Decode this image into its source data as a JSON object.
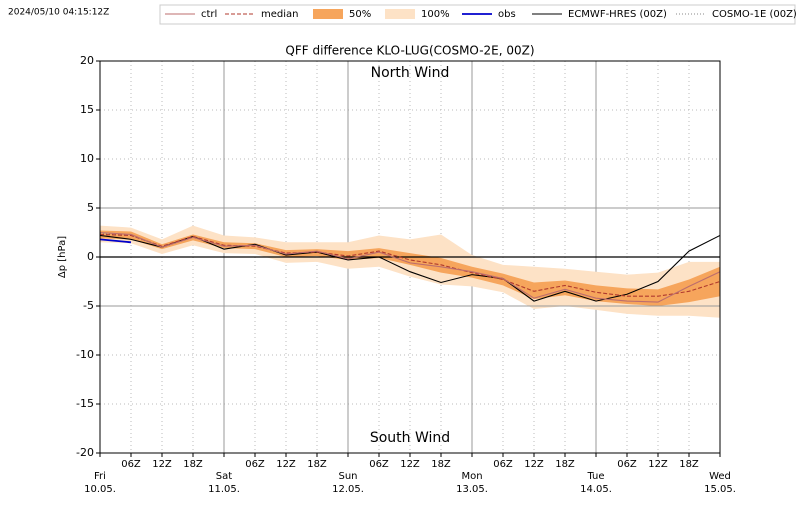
{
  "timestamp": "2024/05/10 04:15:12Z",
  "chart_data": {
    "type": "ensemble",
    "title": "QFF difference KLO-LUG(COSMO-2E, 00Z)",
    "ylabel": "Δp [hPa]",
    "annotations": [
      "North Wind",
      "South Wind"
    ],
    "xlim": [
      "10.05. 00Z",
      "15.05. 00Z"
    ],
    "ylim": [
      -20,
      20
    ],
    "yticks": [
      -20,
      -15,
      -10,
      -5,
      0,
      5,
      10,
      15,
      20
    ],
    "grid": true,
    "hlines": [
      {
        "value": 0,
        "color": "#000000"
      },
      {
        "value": 5,
        "color": "#999999"
      },
      {
        "value": -5,
        "color": "#999999"
      }
    ],
    "xticks": [
      {
        "value": "10.05. 00Z",
        "label": [
          "Fri",
          "10.05."
        ]
      },
      {
        "value": "10.05. 06Z",
        "label": "06Z"
      },
      {
        "value": "10.05. 12Z",
        "label": "12Z"
      },
      {
        "value": "10.05. 18Z",
        "label": "18Z"
      },
      {
        "value": "11.05. 00Z",
        "label": [
          "Sat",
          "11.05."
        ]
      },
      {
        "value": "11.05. 06Z",
        "label": "06Z"
      },
      {
        "value": "11.05. 12Z",
        "label": "12Z"
      },
      {
        "value": "11.05. 18Z",
        "label": "18Z"
      },
      {
        "value": "12.05. 00Z",
        "label": [
          "Sun",
          "12.05."
        ]
      },
      {
        "value": "12.05. 06Z",
        "label": "06Z"
      },
      {
        "value": "12.05. 12Z",
        "label": "12Z"
      },
      {
        "value": "12.05. 18Z",
        "label": "18Z"
      },
      {
        "value": "13.05. 00Z",
        "label": [
          "Mon",
          "13.05."
        ]
      },
      {
        "value": "13.05. 06Z",
        "label": "06Z"
      },
      {
        "value": "13.05. 12Z",
        "label": "12Z"
      },
      {
        "value": "13.05. 18Z",
        "label": "18Z"
      },
      {
        "value": "14.05. 00Z",
        "label": [
          "Tue",
          "14.05."
        ]
      },
      {
        "value": "14.05. 06Z",
        "label": "06Z"
      },
      {
        "value": "14.05. 12Z",
        "label": "12Z"
      },
      {
        "value": "14.05. 18Z",
        "label": "18Z"
      },
      {
        "value": "15.05. 00Z",
        "label": [
          "Wed",
          "15.05."
        ]
      }
    ],
    "x": [
      "10.05. 00Z",
      "10.05. 06Z",
      "10.05. 12Z",
      "10.05. 18Z",
      "11.05. 00Z",
      "11.05. 06Z",
      "11.05. 12Z",
      "11.05. 18Z",
      "12.05. 00Z",
      "12.05. 06Z",
      "12.05. 12Z",
      "12.05. 18Z",
      "13.05. 00Z",
      "13.05. 06Z",
      "13.05. 12Z",
      "13.05. 18Z",
      "14.05. 00Z",
      "14.05. 06Z",
      "14.05. 12Z",
      "14.05. 18Z",
      "15.05. 00Z"
    ],
    "series": [
      {
        "name": "ctrl",
        "style": "solid",
        "color": "#bc6d6d",
        "values": [
          2.5,
          2.3,
          1.0,
          2.0,
          1.1,
          1.2,
          0.3,
          0.6,
          -0.2,
          0.5,
          -0.6,
          -1.0,
          -1.5,
          -2.2,
          -4.2,
          -3.3,
          -4.2,
          -4.5,
          -4.6,
          -3.0,
          -1.5
        ]
      },
      {
        "name": "median",
        "style": "dashed",
        "color": "#b03a2e",
        "values": [
          2.3,
          2.2,
          1.1,
          2.1,
          1.2,
          1.1,
          0.4,
          0.5,
          0.1,
          0.6,
          -0.3,
          -0.8,
          -1.6,
          -2.3,
          -3.5,
          -2.9,
          -3.6,
          -4.0,
          -4.0,
          -3.5,
          -2.5
        ]
      },
      {
        "name": "50%",
        "style": "band",
        "color": "#f6a55c",
        "low": [
          1.9,
          1.8,
          0.8,
          1.7,
          0.9,
          0.8,
          0.0,
          0.1,
          -0.3,
          -0.1,
          -0.8,
          -1.6,
          -2.1,
          -2.9,
          -4.3,
          -3.9,
          -4.5,
          -4.8,
          -5.0,
          -4.6,
          -4.0
        ],
        "high": [
          2.7,
          2.6,
          1.3,
          2.3,
          1.5,
          1.4,
          0.7,
          0.8,
          0.6,
          0.9,
          0.4,
          -0.1,
          -1.0,
          -1.7,
          -2.6,
          -2.4,
          -2.9,
          -3.2,
          -3.3,
          -2.3,
          -1.0
        ]
      },
      {
        "name": "100%",
        "style": "band",
        "color": "#fde2c6",
        "low": [
          1.5,
          1.4,
          0.3,
          1.2,
          0.4,
          0.3,
          -0.6,
          -0.5,
          -1.2,
          -1.0,
          -2.0,
          -2.8,
          -3.0,
          -3.6,
          -5.3,
          -5.0,
          -5.4,
          -5.8,
          -6.0,
          -6.0,
          -6.2
        ],
        "high": [
          3.2,
          3.0,
          1.8,
          3.2,
          2.2,
          2.0,
          1.5,
          1.5,
          1.5,
          2.2,
          1.8,
          2.3,
          0.2,
          -0.8,
          -1.0,
          -1.2,
          -1.5,
          -1.8,
          -1.6,
          -0.5,
          -0.5
        ]
      },
      {
        "name": "obs",
        "style": "solid",
        "color": "#0000cc",
        "values": [
          1.8,
          1.5,
          null,
          null,
          null,
          null,
          null,
          null,
          null,
          null,
          null,
          null,
          null,
          null,
          null,
          null,
          null,
          null,
          null,
          null,
          null
        ]
      },
      {
        "name": "ECMWF-HRES (00Z)",
        "style": "solid",
        "color": "#000000",
        "values": [
          2.2,
          1.8,
          1.0,
          2.1,
          0.8,
          1.3,
          0.2,
          0.5,
          -0.3,
          0.0,
          -1.5,
          -2.6,
          -1.8,
          -2.2,
          -4.5,
          -3.5,
          -4.5,
          -3.8,
          -2.5,
          0.6,
          2.2
        ]
      },
      {
        "name": "COSMO-1E (00Z)",
        "style": "dotted",
        "color": "#888888",
        "values": [
          2.4,
          2.2,
          1.0,
          2.0,
          1.1,
          1.2,
          null,
          null,
          null,
          null,
          null,
          null,
          null,
          null,
          null,
          null,
          null,
          null,
          null,
          null,
          null
        ]
      }
    ]
  }
}
